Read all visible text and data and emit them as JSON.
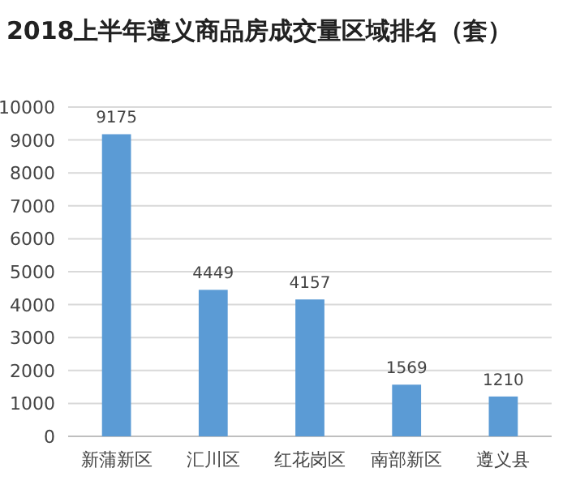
{
  "chart_data": {
    "type": "bar",
    "title": "2018上半年遵义商品房成交量区域排名（套）",
    "categories": [
      "新蒲新区",
      "汇川区",
      "红花岗区",
      "南部新区",
      "遵义县"
    ],
    "values": [
      9175,
      4449,
      4157,
      1569,
      1210
    ],
    "color": "#5b9bd5",
    "ylim": [
      0,
      10000
    ],
    "yticks": [
      0,
      1000,
      2000,
      3000,
      4000,
      5000,
      6000,
      7000,
      8000,
      9000,
      10000
    ],
    "grid": "y",
    "data_labels": true
  }
}
